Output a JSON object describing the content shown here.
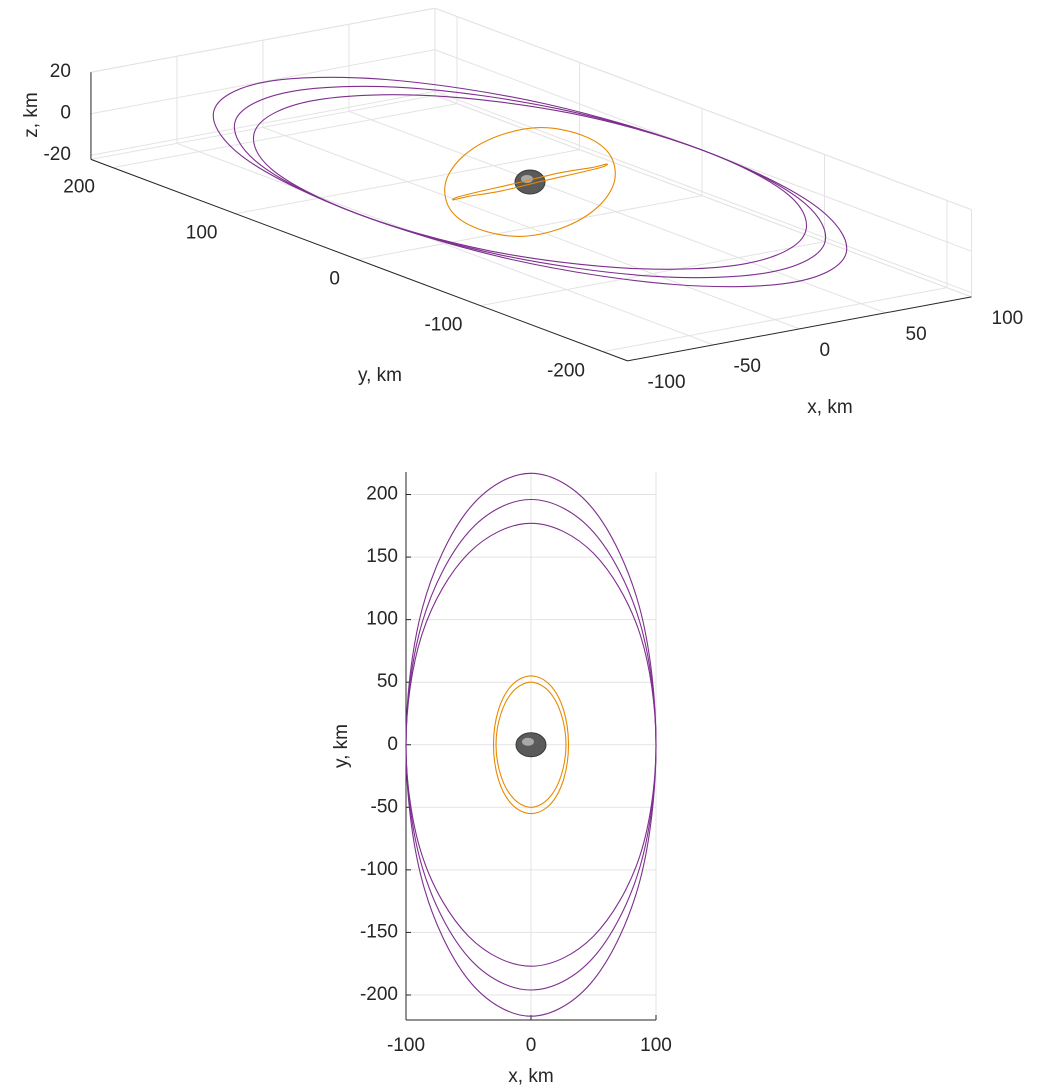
{
  "chart_data": [
    {
      "type": "line3d",
      "xlabel": "x, km",
      "ylabel": "y, km",
      "zlabel": "z, km",
      "xlim": [
        -100,
        100
      ],
      "ylim": [
        -220,
        218
      ],
      "zlim": [
        -22,
        20
      ],
      "xticks": [
        -100,
        -50,
        0,
        50,
        100
      ],
      "yticks": [
        -200,
        -100,
        0,
        100,
        200
      ],
      "zticks": [
        -20,
        0,
        20
      ],
      "grid": true,
      "series": [
        {
          "color": "#7e2f8e",
          "x": [
            100,
            87,
            50,
            0,
            -50,
            -87,
            -100,
            -87,
            -50,
            0,
            50,
            87
          ],
          "y": [
            0,
            109,
            188,
            217,
            188,
            109,
            0,
            -109,
            -188,
            -217,
            -188,
            -109
          ],
          "z": [
            0,
            0,
            0,
            0,
            0,
            0,
            0,
            0,
            0,
            0,
            0,
            0
          ]
        },
        {
          "color": "#7e2f8e",
          "x": [
            100,
            87,
            50,
            0,
            -50,
            -87,
            -100,
            -87,
            -50,
            0,
            50,
            87
          ],
          "y": [
            0,
            98,
            170,
            196,
            170,
            98,
            0,
            -98,
            -170,
            -196,
            -170,
            -98
          ],
          "z": [
            0,
            0,
            0,
            0,
            0,
            0,
            0,
            0,
            0,
            0,
            0,
            0
          ]
        },
        {
          "color": "#7e2f8e",
          "x": [
            100,
            87,
            50,
            0,
            -50,
            -87,
            -100,
            -87,
            -50,
            0,
            50,
            87
          ],
          "y": [
            0,
            89,
            153,
            177,
            153,
            89,
            0,
            -89,
            -153,
            -177,
            -153,
            -89
          ],
          "z": [
            0,
            0,
            0,
            0,
            0,
            0,
            0,
            0,
            0,
            0,
            0,
            0
          ]
        },
        {
          "color": "#e68a00",
          "x": [
            30,
            26,
            15,
            0,
            -15,
            -26,
            -30,
            -26,
            -15,
            0,
            15,
            26
          ],
          "y": [
            0,
            28,
            48,
            55,
            48,
            28,
            0,
            -28,
            -48,
            -55,
            -48,
            -28
          ],
          "z": [
            18,
            16,
            9,
            0,
            -9,
            -16,
            -18,
            -16,
            -9,
            0,
            9,
            16
          ]
        },
        {
          "color": "#e68a00",
          "x": [
            28,
            24,
            14,
            0,
            -14,
            -24,
            -28,
            -24,
            -14,
            0,
            14,
            24
          ],
          "y": [
            0,
            25,
            43,
            50,
            43,
            25,
            0,
            -25,
            -43,
            -50,
            -43,
            -25
          ],
          "z": [
            0,
            -9,
            -16,
            -18,
            -16,
            -9,
            0,
            9,
            16,
            18,
            16,
            9
          ]
        }
      ]
    },
    {
      "type": "line",
      "xlabel": "x, km",
      "ylabel": "y, km",
      "xlim": [
        -100,
        100
      ],
      "ylim": [
        -220,
        218
      ],
      "xticks": [
        -100,
        0,
        100
      ],
      "yticks": [
        -200,
        -150,
        -100,
        -50,
        0,
        50,
        100,
        150,
        200
      ],
      "grid": true,
      "series": [
        {
          "color": "#7e2f8e",
          "x": [
            100,
            87,
            50,
            0,
            -50,
            -87,
            -100,
            -87,
            -50,
            0,
            50,
            87
          ],
          "y": [
            0,
            109,
            188,
            217,
            188,
            109,
            0,
            -109,
            -188,
            -217,
            -188,
            -109
          ]
        },
        {
          "color": "#7e2f8e",
          "x": [
            100,
            87,
            50,
            0,
            -50,
            -87,
            -100,
            -87,
            -50,
            0,
            50,
            87
          ],
          "y": [
            0,
            98,
            170,
            196,
            170,
            98,
            0,
            -98,
            -170,
            -196,
            -170,
            -98
          ]
        },
        {
          "color": "#7e2f8e",
          "x": [
            100,
            87,
            50,
            0,
            -50,
            -87,
            -100,
            -87,
            -50,
            0,
            50,
            87
          ],
          "y": [
            0,
            89,
            153,
            177,
            153,
            89,
            0,
            -89,
            -153,
            -177,
            -153,
            -89
          ]
        },
        {
          "color": "#e68a00",
          "x": [
            30,
            26,
            15,
            0,
            -15,
            -26,
            -30,
            -26,
            -15,
            0,
            15,
            26
          ],
          "y": [
            0,
            28,
            48,
            55,
            48,
            28,
            0,
            -28,
            -48,
            -55,
            -48,
            -28
          ]
        },
        {
          "color": "#e68a00",
          "x": [
            28,
            24,
            14,
            0,
            -14,
            -24,
            -28,
            -24,
            -14,
            0,
            14,
            24
          ],
          "y": [
            0,
            25,
            43,
            50,
            43,
            25,
            0,
            -25,
            -43,
            -50,
            -43,
            -25
          ]
        }
      ]
    }
  ]
}
